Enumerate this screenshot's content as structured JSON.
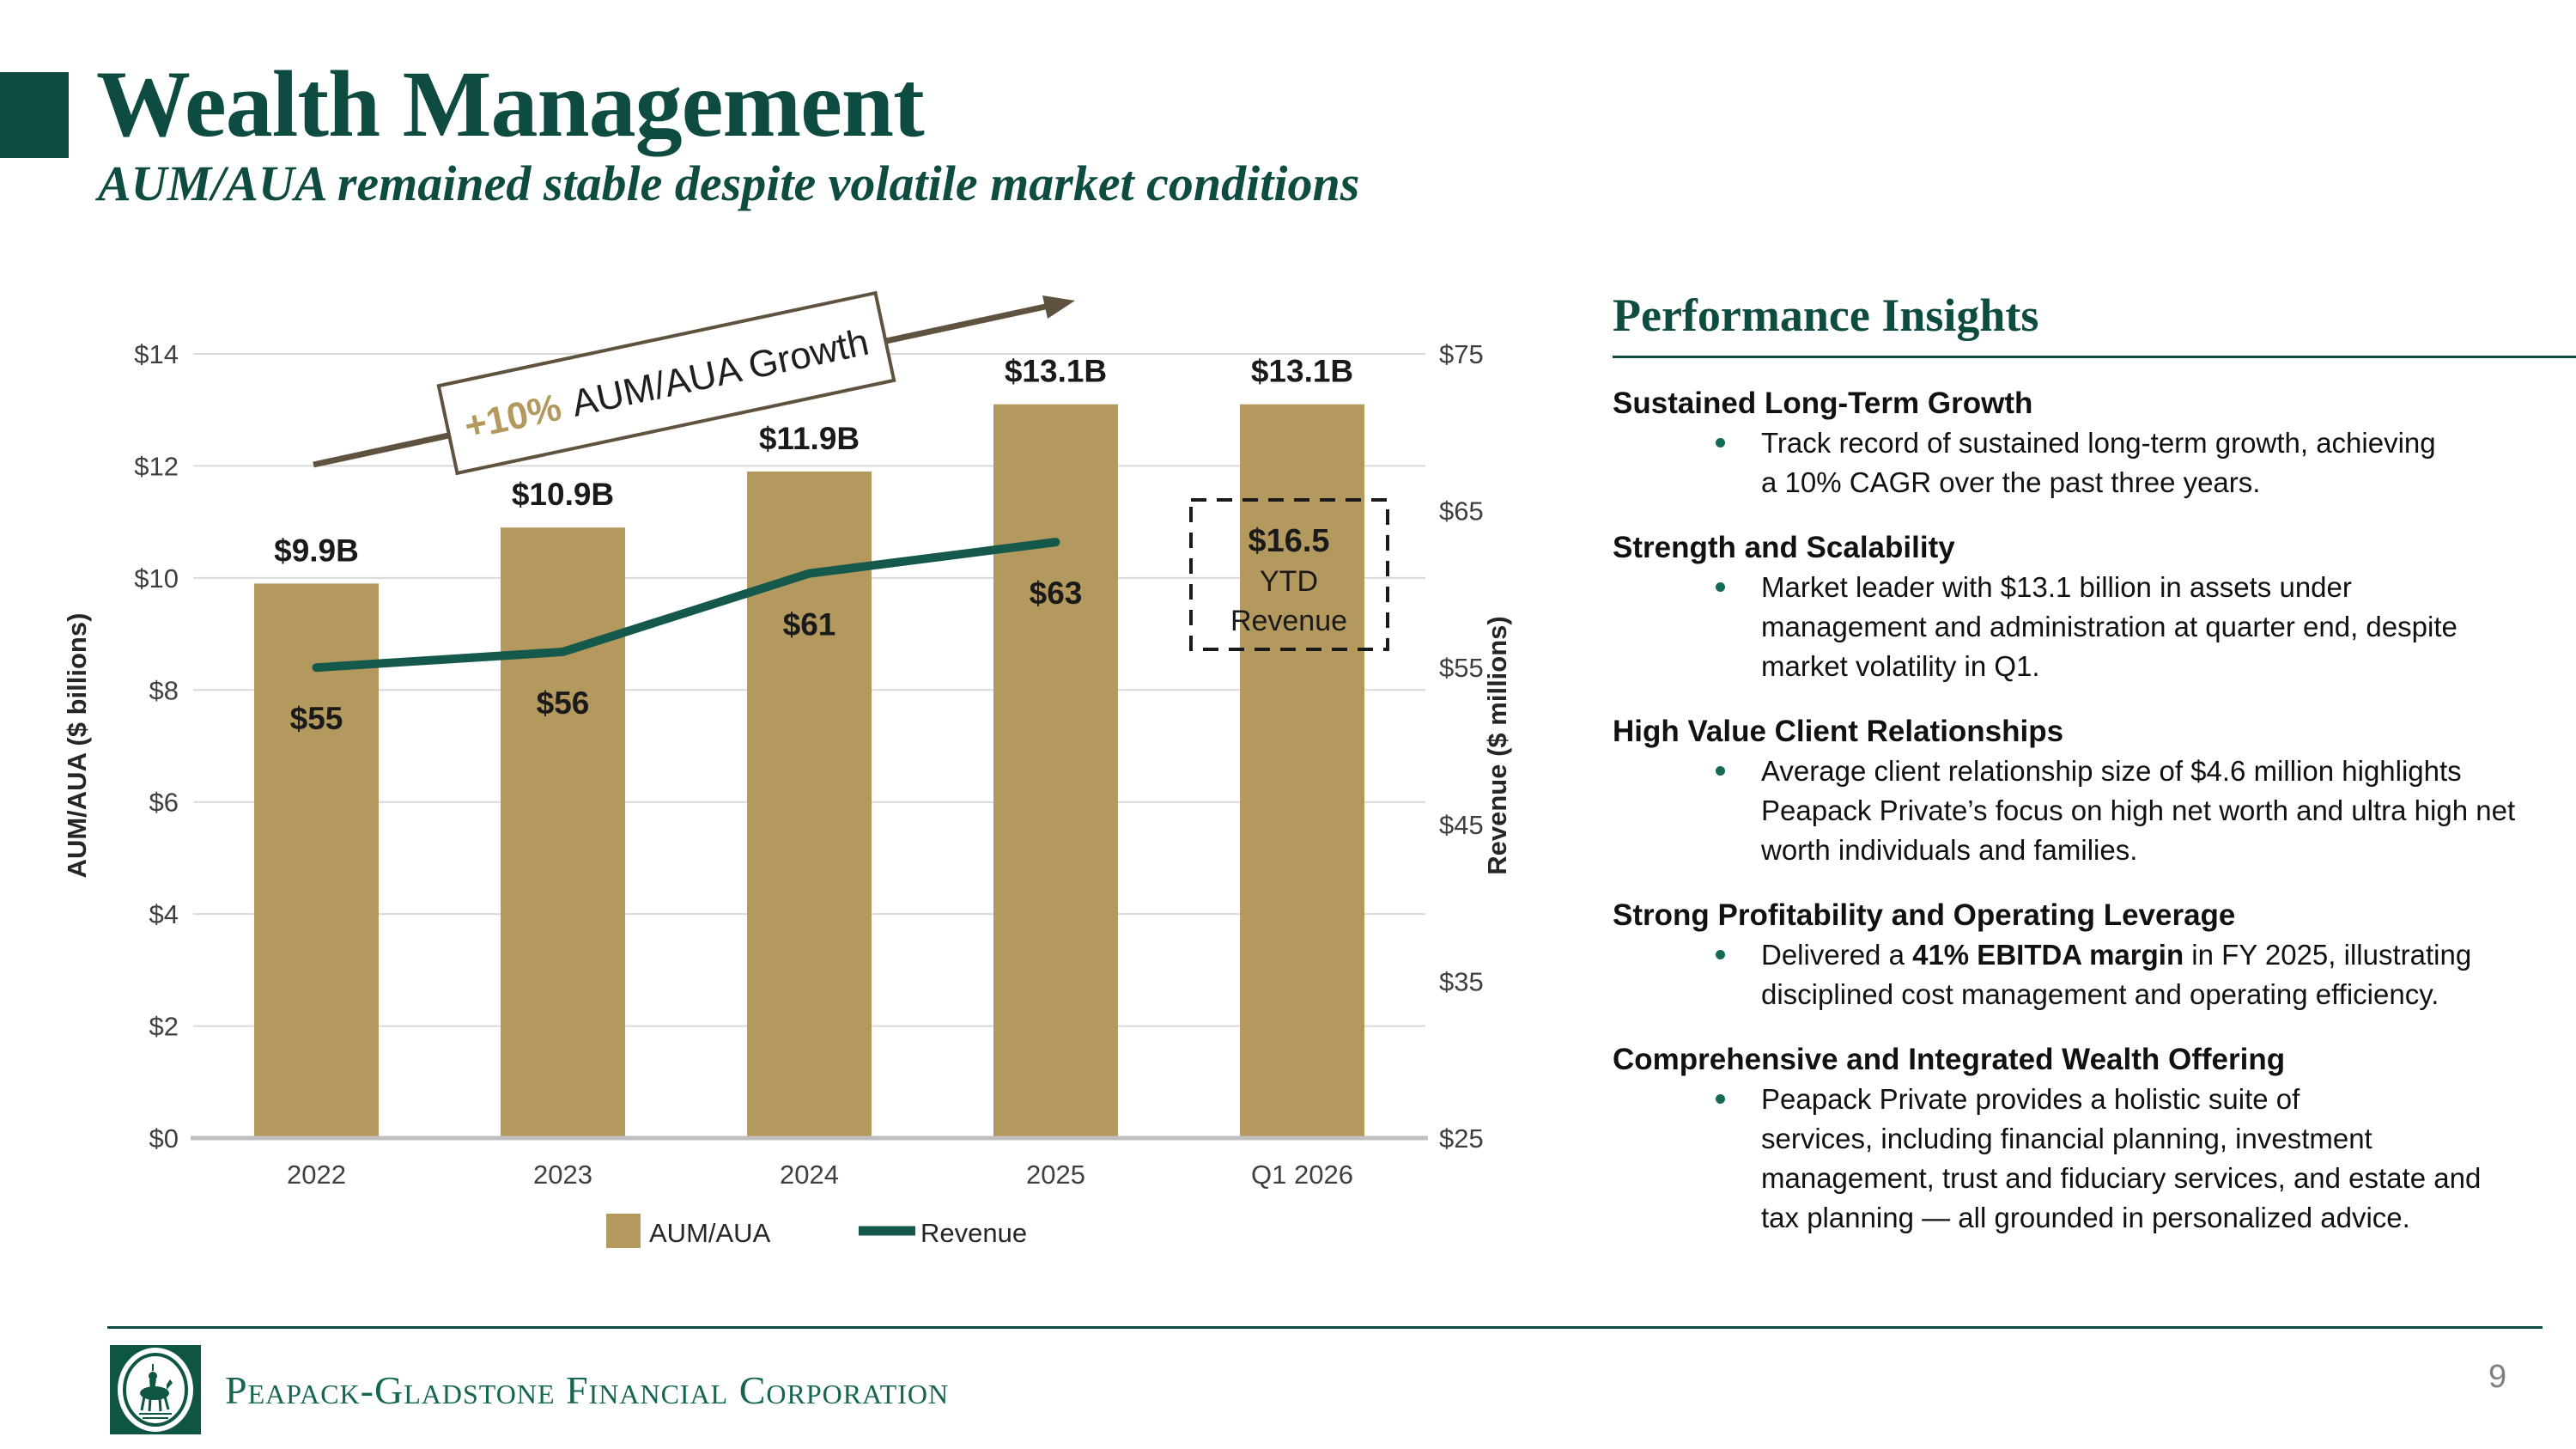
{
  "slide": {
    "title": "Wealth Management",
    "subtitle": "AUM/AUA remained stable despite volatile market conditions",
    "page_number": "9",
    "footer_company": "Peapack-Gladstone Financial Corporation"
  },
  "colors": {
    "brand_green": "#0e4c41",
    "footer_green": "#156650",
    "bar_gold": "#b3995d",
    "revenue_teal": "#15584c",
    "arrow_brown": "#5f5340",
    "gridline_gray": "#d9d9d9",
    "axis_line_gray": "#bfbfbf",
    "tick_text": "#3f3f3f",
    "label_black": "#1a1a1a",
    "page_number_gray": "#808080"
  },
  "chart_data": {
    "type": "bar",
    "subtype": "combo bar+line, dual axis",
    "categories": [
      "2022",
      "2023",
      "2024",
      "2025",
      "Q1 2026"
    ],
    "series": [
      {
        "name": "AUM/AUA",
        "type": "bar",
        "axis": "left",
        "values": [
          9.9,
          10.9,
          11.9,
          13.1,
          13.1
        ],
        "labels": [
          "$9.9B",
          "$10.9B",
          "$11.9B",
          "$13.1B",
          "$13.1B"
        ],
        "color": "#b3995d"
      },
      {
        "name": "Revenue",
        "type": "line",
        "axis": "right",
        "values": [
          55,
          56,
          61,
          63,
          null
        ],
        "labels": [
          "$55",
          "$56",
          "$61",
          "$63"
        ],
        "color": "#15584c"
      }
    ],
    "left_axis": {
      "title": "AUM/AUA ($ billions)",
      "min": 0,
      "max": 14,
      "step": 2,
      "tick_labels": [
        "$0",
        "$2",
        "$4",
        "$6",
        "$8",
        "$10",
        "$12",
        "$14"
      ]
    },
    "right_axis": {
      "title": "Revenue ($ millions)",
      "min": 25,
      "max": 75,
      "step": 10,
      "tick_labels": [
        "$25",
        "$35",
        "$45",
        "$55",
        "$65",
        "$75"
      ]
    },
    "annotation": {
      "pre": "+10%",
      "text": "AUM/AUA Growth"
    },
    "callout": {
      "line1": "$16.5",
      "line2": "YTD",
      "line3": "Revenue"
    },
    "legend": [
      "AUM/AUA",
      "Revenue"
    ],
    "grid": "horizontal, light gray",
    "legend_position": "bottom center"
  },
  "insights": {
    "heading": "Performance Insights",
    "sections": [
      {
        "title": "Sustained Long-Term Growth",
        "lines": [
          "Track record of sustained long-term growth, achieving",
          "a 10% CAGR over the past three years."
        ]
      },
      {
        "title": "Strength and Scalability",
        "lines": [
          "Market leader with $13.1 billion in assets under",
          "management and administration at quarter end, despite",
          "market volatility in Q1."
        ]
      },
      {
        "title": "High Value Client Relationships",
        "lines": [
          "Average client relationship size of $4.6 million highlights",
          "Peapack Private’s focus on high net worth and ultra high net",
          "worth individuals and families."
        ]
      },
      {
        "title": "Strong Profitability and Operating Leverage",
        "rich": {
          "pre": "Delivered a ",
          "bold": "41% EBITDA margin",
          "post": " in FY 2025, illustrating"
        },
        "lines": [
          "disciplined cost management and operating efficiency."
        ]
      },
      {
        "title": "Comprehensive and Integrated Wealth Offering",
        "lines": [
          "Peapack Private provides a holistic suite of",
          "services, including financial planning, investment",
          "management, trust and fiduciary services, and estate and",
          "tax planning — all grounded in personalized advice."
        ]
      }
    ]
  }
}
